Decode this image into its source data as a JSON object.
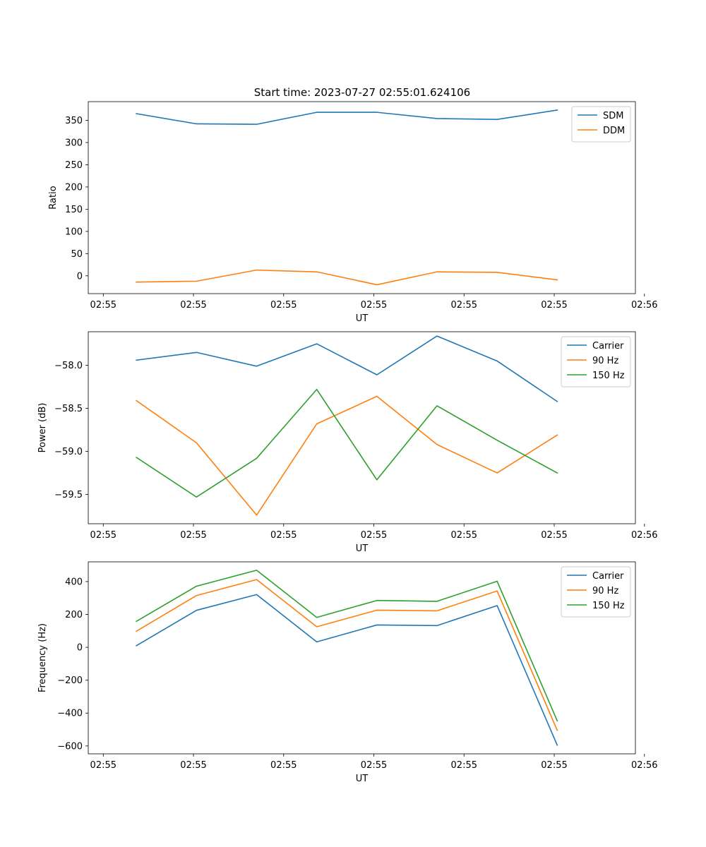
{
  "figure": {
    "title": "Start time: 2023-07-27 02:55:01.624106"
  },
  "colors": {
    "blue": "#1f77b4",
    "orange": "#ff7f0e",
    "green": "#2ca02c"
  },
  "chart_data": [
    {
      "type": "line",
      "title": "Start time: 2023-07-27 02:55:01.624106",
      "xlabel": "UT",
      "ylabel": "Ratio",
      "x": [
        1,
        2,
        3,
        4,
        5,
        6,
        7,
        8
      ],
      "xlim": [
        0.2,
        9.3
      ],
      "xticks": [
        0.45,
        1.95,
        3.45,
        4.95,
        6.45,
        7.95,
        9.45
      ],
      "xtick_labels": [
        "02:55",
        "02:55",
        "02:55",
        "02:55",
        "02:55",
        "02:55",
        "02:56"
      ],
      "ylim": [
        -40,
        392
      ],
      "yticks": [
        0,
        50,
        100,
        150,
        200,
        250,
        300,
        350
      ],
      "ytick_labels": [
        "0",
        "50",
        "100",
        "150",
        "200",
        "250",
        "300",
        "350"
      ],
      "legend": "top-right",
      "series": [
        {
          "name": "SDM",
          "color": "#1f77b4",
          "values": [
            365,
            342,
            341,
            368,
            368,
            354,
            352,
            373
          ]
        },
        {
          "name": "DDM",
          "color": "#ff7f0e",
          "values": [
            -14,
            -12,
            13,
            9,
            -20,
            9,
            8,
            -9
          ]
        }
      ]
    },
    {
      "type": "line",
      "title": "",
      "xlabel": "UT",
      "ylabel": "Power (dB)",
      "x": [
        1,
        2,
        3,
        4,
        5,
        6,
        7,
        8
      ],
      "xlim": [
        0.2,
        9.3
      ],
      "xticks": [
        0.45,
        1.95,
        3.45,
        4.95,
        6.45,
        7.95,
        9.45
      ],
      "xtick_labels": [
        "02:55",
        "02:55",
        "02:55",
        "02:55",
        "02:55",
        "02:55",
        "02:56"
      ],
      "ylim": [
        -59.84,
        -57.61
      ],
      "yticks": [
        -59.5,
        -59.0,
        -58.5,
        -58.0
      ],
      "ytick_labels": [
        "−59.5",
        "−59.0",
        "−58.5",
        "−58.0"
      ],
      "legend": "top-right",
      "series": [
        {
          "name": "Carrier",
          "color": "#1f77b4",
          "values": [
            -57.94,
            -57.85,
            -58.01,
            -57.75,
            -58.11,
            -57.66,
            -57.95,
            -58.42
          ]
        },
        {
          "name": "90 Hz",
          "color": "#ff7f0e",
          "values": [
            -58.41,
            -58.9,
            -59.74,
            -58.68,
            -58.36,
            -58.92,
            -59.25,
            -58.81
          ]
        },
        {
          "name": "150 Hz",
          "color": "#2ca02c",
          "values": [
            -59.07,
            -59.53,
            -59.08,
            -58.28,
            -59.33,
            -58.47,
            -58.87,
            -59.25
          ]
        }
      ]
    },
    {
      "type": "line",
      "title": "",
      "xlabel": "UT",
      "ylabel": "Frequency (Hz)",
      "x": [
        1,
        2,
        3,
        4,
        5,
        6,
        7,
        8
      ],
      "xlim": [
        0.2,
        9.3
      ],
      "xticks": [
        0.45,
        1.95,
        3.45,
        4.95,
        6.45,
        7.95,
        9.45
      ],
      "xtick_labels": [
        "02:55",
        "02:55",
        "02:55",
        "02:55",
        "02:55",
        "02:55",
        "02:56"
      ],
      "ylim": [
        -648,
        520
      ],
      "yticks": [
        -600,
        -400,
        -200,
        0,
        200,
        400
      ],
      "ytick_labels": [
        "−600",
        "−400",
        "−200",
        "0",
        "200",
        "400"
      ],
      "legend": "top-right",
      "series": [
        {
          "name": "Carrier",
          "color": "#1f77b4",
          "values": [
            10,
            225,
            321,
            33,
            136,
            132,
            254,
            -595
          ]
        },
        {
          "name": "90 Hz",
          "color": "#ff7f0e",
          "values": [
            98,
            315,
            412,
            125,
            226,
            222,
            343,
            -505
          ]
        },
        {
          "name": "150 Hz",
          "color": "#2ca02c",
          "values": [
            158,
            372,
            469,
            182,
            285,
            280,
            402,
            -447
          ]
        }
      ]
    }
  ]
}
